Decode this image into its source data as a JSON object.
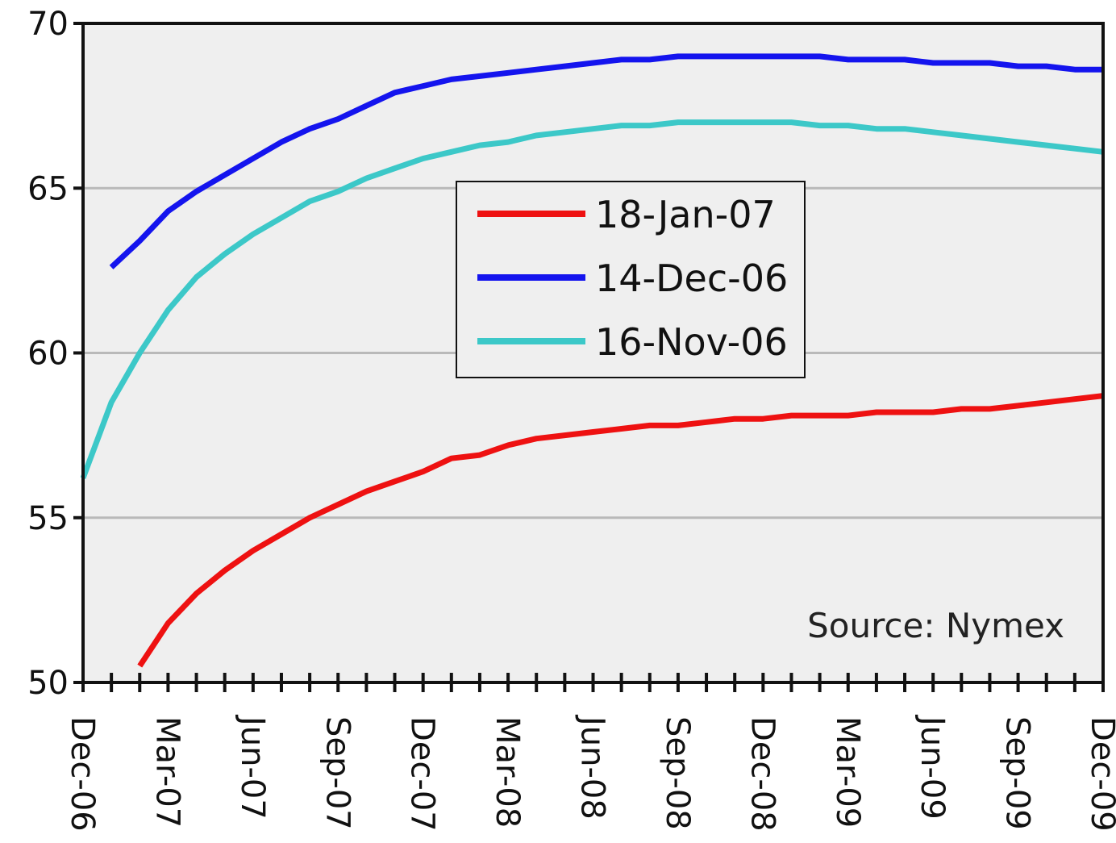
{
  "chart_data": {
    "type": "line",
    "title": "",
    "xlabel": "",
    "ylabel": "",
    "ylim": [
      50,
      70
    ],
    "y_ticks": [
      50,
      55,
      60,
      65,
      70
    ],
    "x_tick_labels": [
      "Dec-06",
      "Mar-07",
      "Jun-07",
      "Sep-07",
      "Dec-07",
      "Mar-08",
      "Jun-08",
      "Sep-08",
      "Dec-08",
      "Mar-09",
      "Jun-09",
      "Sep-09",
      "Dec-09"
    ],
    "grid": "horizontal",
    "legend_position": "center-top",
    "annotation": "Source: Nymex",
    "series": [
      {
        "name": "18-Jan-07",
        "color": "#ee1111",
        "x": [
          "Feb-07",
          "Mar-07",
          "Apr-07",
          "May-07",
          "Jun-07",
          "Jul-07",
          "Aug-07",
          "Sep-07",
          "Oct-07",
          "Nov-07",
          "Dec-07",
          "Jan-08",
          "Feb-08",
          "Mar-08",
          "Apr-08",
          "May-08",
          "Jun-08",
          "Jul-08",
          "Aug-08",
          "Sep-08",
          "Oct-08",
          "Nov-08",
          "Dec-08",
          "Jan-09",
          "Feb-09",
          "Mar-09",
          "Apr-09",
          "May-09",
          "Jun-09",
          "Jul-09",
          "Aug-09",
          "Sep-09",
          "Oct-09",
          "Nov-09",
          "Dec-09"
        ],
        "values": [
          50.5,
          51.8,
          52.7,
          53.4,
          54.0,
          54.5,
          55.0,
          55.4,
          55.8,
          56.1,
          56.4,
          56.8,
          56.9,
          57.2,
          57.4,
          57.5,
          57.6,
          57.7,
          57.8,
          57.8,
          57.9,
          58.0,
          58.0,
          58.1,
          58.1,
          58.1,
          58.2,
          58.2,
          58.2,
          58.3,
          58.3,
          58.4,
          58.5,
          58.6,
          58.7
        ]
      },
      {
        "name": "14-Dec-06",
        "color": "#1414ee",
        "x": [
          "Jan-07",
          "Feb-07",
          "Mar-07",
          "Apr-07",
          "May-07",
          "Jun-07",
          "Jul-07",
          "Aug-07",
          "Sep-07",
          "Oct-07",
          "Nov-07",
          "Dec-07",
          "Jan-08",
          "Feb-08",
          "Mar-08",
          "Apr-08",
          "May-08",
          "Jun-08",
          "Jul-08",
          "Aug-08",
          "Sep-08",
          "Oct-08",
          "Nov-08",
          "Dec-08",
          "Jan-09",
          "Feb-09",
          "Mar-09",
          "Apr-09",
          "May-09",
          "Jun-09",
          "Jul-09",
          "Aug-09",
          "Sep-09",
          "Oct-09",
          "Nov-09",
          "Dec-09"
        ],
        "values": [
          62.6,
          63.4,
          64.3,
          64.9,
          65.4,
          65.9,
          66.4,
          66.8,
          67.1,
          67.5,
          67.9,
          68.1,
          68.3,
          68.4,
          68.5,
          68.6,
          68.7,
          68.8,
          68.9,
          68.9,
          69.0,
          69.0,
          69.0,
          69.0,
          69.0,
          69.0,
          68.9,
          68.9,
          68.9,
          68.8,
          68.8,
          68.8,
          68.7,
          68.7,
          68.6,
          68.6
        ]
      },
      {
        "name": "16-Nov-06",
        "color": "#3cc8c8",
        "x": [
          "Dec-06",
          "Jan-07",
          "Feb-07",
          "Mar-07",
          "Apr-07",
          "May-07",
          "Jun-07",
          "Jul-07",
          "Aug-07",
          "Sep-07",
          "Oct-07",
          "Nov-07",
          "Dec-07",
          "Jan-08",
          "Feb-08",
          "Mar-08",
          "Apr-08",
          "May-08",
          "Jun-08",
          "Jul-08",
          "Aug-08",
          "Sep-08",
          "Oct-08",
          "Nov-08",
          "Dec-08",
          "Jan-09",
          "Feb-09",
          "Mar-09",
          "Apr-09",
          "May-09",
          "Jun-09",
          "Jul-09",
          "Aug-09",
          "Sep-09",
          "Oct-09",
          "Nov-09",
          "Dec-09"
        ],
        "values": [
          56.2,
          58.5,
          60.0,
          61.3,
          62.3,
          63.0,
          63.6,
          64.1,
          64.6,
          64.9,
          65.3,
          65.6,
          65.9,
          66.1,
          66.3,
          66.4,
          66.6,
          66.7,
          66.8,
          66.9,
          66.9,
          67.0,
          67.0,
          67.0,
          67.0,
          67.0,
          66.9,
          66.9,
          66.8,
          66.8,
          66.7,
          66.6,
          66.5,
          66.4,
          66.3,
          66.2,
          66.1
        ]
      }
    ]
  }
}
